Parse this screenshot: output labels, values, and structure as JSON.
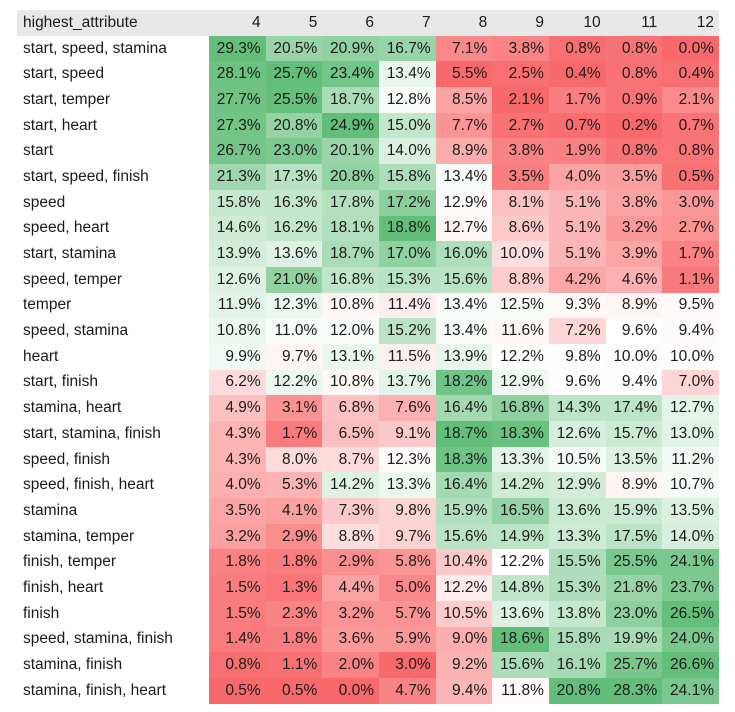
{
  "chart_data": {
    "type": "heatmap",
    "row_header": "highest_attribute",
    "columns": [
      "4",
      "5",
      "6",
      "7",
      "8",
      "9",
      "10",
      "11",
      "12"
    ],
    "rows": [
      {
        "label": "start, speed, stamina",
        "values": [
          29.3,
          20.5,
          20.9,
          16.7,
          7.1,
          3.8,
          0.8,
          0.8,
          0.0
        ]
      },
      {
        "label": "start, speed",
        "values": [
          28.1,
          25.7,
          23.4,
          13.4,
          5.5,
          2.5,
          0.4,
          0.8,
          0.4
        ]
      },
      {
        "label": "start, temper",
        "values": [
          27.7,
          25.5,
          18.7,
          12.8,
          8.5,
          2.1,
          1.7,
          0.9,
          2.1
        ]
      },
      {
        "label": "start, heart",
        "values": [
          27.3,
          20.8,
          24.9,
          15.0,
          7.7,
          2.7,
          0.7,
          0.2,
          0.7
        ]
      },
      {
        "label": "start",
        "values": [
          26.7,
          23.0,
          20.1,
          14.0,
          8.9,
          3.8,
          1.9,
          0.8,
          0.8
        ]
      },
      {
        "label": "start, speed, finish",
        "values": [
          21.3,
          17.3,
          20.8,
          15.8,
          13.4,
          3.5,
          4.0,
          3.5,
          0.5
        ]
      },
      {
        "label": "speed",
        "values": [
          15.8,
          16.3,
          17.8,
          17.2,
          12.9,
          8.1,
          5.1,
          3.8,
          3.0
        ]
      },
      {
        "label": "speed, heart",
        "values": [
          14.6,
          16.2,
          18.1,
          18.8,
          12.7,
          8.6,
          5.1,
          3.2,
          2.7
        ]
      },
      {
        "label": "start, stamina",
        "values": [
          13.9,
          13.6,
          18.7,
          17.0,
          16.0,
          10.0,
          5.1,
          3.9,
          1.7
        ]
      },
      {
        "label": "speed, temper",
        "values": [
          12.6,
          21.0,
          16.8,
          15.3,
          15.6,
          8.8,
          4.2,
          4.6,
          1.1
        ]
      },
      {
        "label": "temper",
        "values": [
          11.9,
          12.3,
          10.8,
          11.4,
          13.4,
          12.5,
          9.3,
          8.9,
          9.5
        ]
      },
      {
        "label": "speed, stamina",
        "values": [
          10.8,
          11.0,
          12.0,
          15.2,
          13.4,
          11.6,
          7.2,
          9.6,
          9.4
        ]
      },
      {
        "label": "heart",
        "values": [
          9.9,
          9.7,
          13.1,
          11.5,
          13.9,
          12.2,
          9.8,
          10.0,
          10.0
        ]
      },
      {
        "label": "start, finish",
        "values": [
          6.2,
          12.2,
          10.8,
          13.7,
          18.2,
          12.9,
          9.6,
          9.4,
          7.0
        ]
      },
      {
        "label": "stamina, heart",
        "values": [
          4.9,
          3.1,
          6.8,
          7.6,
          16.4,
          16.8,
          14.3,
          17.4,
          12.7
        ]
      },
      {
        "label": "start, stamina, finish",
        "values": [
          4.3,
          1.7,
          6.5,
          9.1,
          18.7,
          18.3,
          12.6,
          15.7,
          13.0
        ]
      },
      {
        "label": "speed, finish",
        "values": [
          4.3,
          8.0,
          8.7,
          12.3,
          18.3,
          13.3,
          10.5,
          13.5,
          11.2
        ]
      },
      {
        "label": "speed, finish, heart",
        "values": [
          4.0,
          5.3,
          14.2,
          13.3,
          16.4,
          14.2,
          12.9,
          8.9,
          10.7
        ]
      },
      {
        "label": "stamina",
        "values": [
          3.5,
          4.1,
          7.3,
          9.8,
          15.9,
          16.5,
          13.6,
          15.9,
          13.5
        ]
      },
      {
        "label": "stamina, temper",
        "values": [
          3.2,
          2.9,
          8.8,
          9.7,
          15.6,
          14.9,
          13.3,
          17.5,
          14.0
        ]
      },
      {
        "label": "finish, temper",
        "values": [
          1.8,
          1.8,
          2.9,
          5.8,
          10.4,
          12.2,
          15.5,
          25.5,
          24.1
        ]
      },
      {
        "label": "finish, heart",
        "values": [
          1.5,
          1.3,
          4.4,
          5.0,
          12.2,
          14.8,
          15.3,
          21.8,
          23.7
        ]
      },
      {
        "label": "finish",
        "values": [
          1.5,
          2.3,
          3.2,
          5.7,
          10.5,
          13.6,
          13.8,
          23.0,
          26.5
        ]
      },
      {
        "label": "speed, stamina, finish",
        "values": [
          1.4,
          1.8,
          3.6,
          5.9,
          9.0,
          18.6,
          15.8,
          19.9,
          24.0
        ]
      },
      {
        "label": "stamina, finish",
        "values": [
          0.8,
          1.1,
          2.0,
          3.0,
          9.2,
          15.6,
          16.1,
          25.7,
          26.6
        ]
      },
      {
        "label": "stamina, finish, heart",
        "values": [
          0.5,
          0.5,
          0.0,
          4.7,
          9.4,
          11.8,
          20.8,
          28.3,
          24.1
        ]
      }
    ],
    "value_suffix": "%",
    "color_scale": {
      "low": "#f8696b",
      "mid": "#ffffff",
      "high": "#63be7b"
    }
  }
}
